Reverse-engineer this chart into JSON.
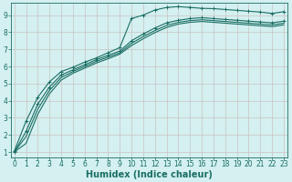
{
  "title": "",
  "xlabel": "Humidex (Indice chaleur)",
  "ylabel": "",
  "background_color": "#d4f0f0",
  "grid_color": "#c8b8b8",
  "line_color": "#1a6e64",
  "xlim": [
    -0.3,
    23.3
  ],
  "ylim": [
    0.7,
    9.7
  ],
  "xticks": [
    0,
    1,
    2,
    3,
    4,
    5,
    6,
    7,
    8,
    9,
    10,
    11,
    12,
    13,
    14,
    15,
    16,
    17,
    18,
    19,
    20,
    21,
    22,
    23
  ],
  "yticks": [
    1,
    2,
    3,
    4,
    5,
    6,
    7,
    8,
    9
  ],
  "curves": [
    {
      "x": [
        0,
        1,
        2,
        3,
        4,
        5,
        6,
        7,
        8,
        9,
        10,
        11,
        12,
        13,
        14,
        15,
        16,
        17,
        18,
        19,
        20,
        21,
        22,
        23
      ],
      "y": [
        1.05,
        2.8,
        4.2,
        5.1,
        5.7,
        5.95,
        6.25,
        6.5,
        6.8,
        7.1,
        8.8,
        9.0,
        9.3,
        9.45,
        9.5,
        9.45,
        9.4,
        9.38,
        9.33,
        9.28,
        9.23,
        9.18,
        9.1,
        9.2
      ],
      "marker": "+"
    },
    {
      "x": [
        0,
        1,
        2,
        3,
        4,
        5,
        6,
        7,
        8,
        9,
        10,
        11,
        12,
        13,
        14,
        15,
        16,
        17,
        18,
        19,
        20,
        21,
        22,
        23
      ],
      "y": [
        1.0,
        2.2,
        3.8,
        4.8,
        5.5,
        5.8,
        6.1,
        6.4,
        6.65,
        6.9,
        7.5,
        7.9,
        8.25,
        8.55,
        8.7,
        8.8,
        8.85,
        8.8,
        8.75,
        8.7,
        8.65,
        8.6,
        8.55,
        8.65
      ],
      "marker": "+"
    },
    {
      "x": [
        0,
        1,
        2,
        3,
        4,
        5,
        6,
        7,
        8,
        9,
        10,
        11,
        12,
        13,
        14,
        15,
        16,
        17,
        18,
        19,
        20,
        21,
        22,
        23
      ],
      "y": [
        1.0,
        1.9,
        3.5,
        4.6,
        5.35,
        5.7,
        6.0,
        6.3,
        6.55,
        6.8,
        7.35,
        7.75,
        8.1,
        8.4,
        8.58,
        8.68,
        8.73,
        8.68,
        8.63,
        8.58,
        8.53,
        8.48,
        8.43,
        8.53
      ],
      "marker": null
    },
    {
      "x": [
        0,
        1,
        2,
        3,
        4,
        5,
        6,
        7,
        8,
        9,
        10,
        11,
        12,
        13,
        14,
        15,
        16,
        17,
        18,
        19,
        20,
        21,
        22,
        23
      ],
      "y": [
        1.0,
        1.5,
        3.2,
        4.4,
        5.2,
        5.6,
        5.9,
        6.2,
        6.45,
        6.72,
        7.22,
        7.62,
        7.98,
        8.28,
        8.48,
        8.58,
        8.63,
        8.58,
        8.53,
        8.48,
        8.43,
        8.38,
        8.33,
        8.43
      ],
      "marker": null
    }
  ],
  "tick_fontsize": 5.5,
  "label_fontsize": 7.0,
  "linewidth": 0.8,
  "markersize": 2.5,
  "figsize": [
    3.2,
    2.0
  ],
  "dpi": 100
}
